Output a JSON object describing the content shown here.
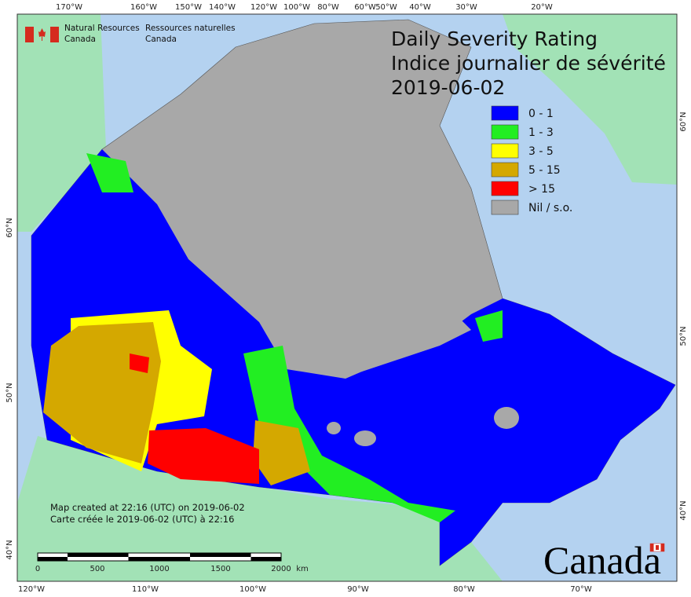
{
  "header": {
    "org_en": [
      "Natural Resources",
      "Canada"
    ],
    "org_fr": [
      "Ressources naturelles",
      "Canada"
    ]
  },
  "title": {
    "line1": "Daily Severity Rating",
    "line2": "Indice journalier de sévérité",
    "date": "2019-06-02"
  },
  "legend": [
    {
      "label": "0 - 1",
      "color": "#0000ff"
    },
    {
      "label": "1 - 3",
      "color": "#22ee22"
    },
    {
      "label": "3 - 5",
      "color": "#ffff00"
    },
    {
      "label": "5 - 15",
      "color": "#d4a800"
    },
    {
      "label": "> 15",
      "color": "#ff0000"
    },
    {
      "label": "Nil / s.o.",
      "color": "#a8a8a8"
    }
  ],
  "top_lon_labels": [
    "170°W",
    "160°W",
    "150°W",
    "140°W",
    "120°W",
    "100°W",
    "80°W",
    "60°W",
    "50°W",
    "40°W",
    "30°W",
    "20°W"
  ],
  "bottom_lon_labels": [
    "120°W",
    "110°W",
    "100°W",
    "90°W",
    "80°W",
    "70°W"
  ],
  "left_lat_labels": [
    "60°N",
    "50°N",
    "40°N"
  ],
  "right_lat_labels": [
    "60°N",
    "50°N",
    "40°N"
  ],
  "notes": [
    "Map created at 22:16 (UTC) on 2019-06-02",
    "Carte créée le 2019-06-02 (UTC) à 22:16"
  ],
  "scale_bar": {
    "labels": [
      0,
      500,
      1000,
      1500,
      2000
    ],
    "unit": "km"
  },
  "wordmark": "Canada"
}
